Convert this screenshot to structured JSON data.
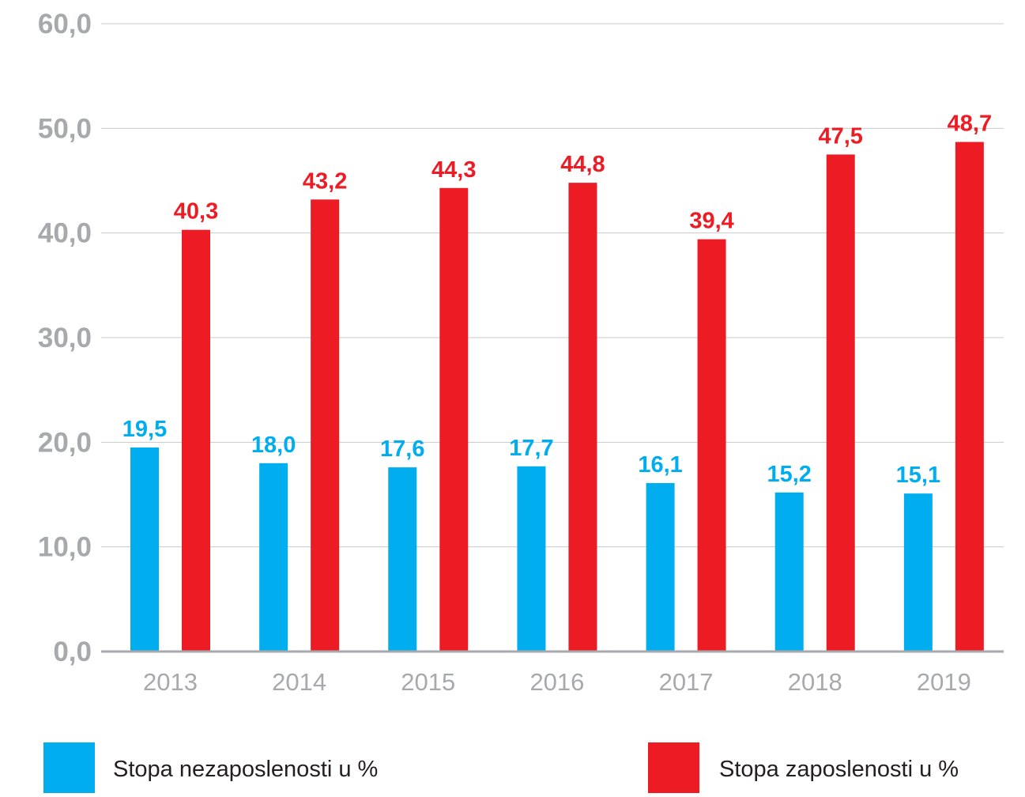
{
  "chart_data": {
    "type": "bar",
    "categories": [
      "2013",
      "2014",
      "2015",
      "2016",
      "2017",
      "2018",
      "2019"
    ],
    "series": [
      {
        "name": "Stopa nezaposlenosti u %",
        "color": "#00adef",
        "values": [
          19.5,
          18.0,
          17.6,
          17.7,
          16.1,
          15.2,
          15.1
        ],
        "labels": [
          "19,5",
          "18,0",
          "17,6",
          "17,7",
          "16,1",
          "15,2",
          "15,1"
        ]
      },
      {
        "name": "Stopa zaposlenosti u %",
        "color": "#ed1c24",
        "values": [
          40.3,
          43.2,
          44.3,
          44.8,
          39.4,
          47.5,
          48.7
        ],
        "labels": [
          "40,3",
          "43,2",
          "44,3",
          "44,8",
          "39,4",
          "47,5",
          "48,7"
        ]
      }
    ],
    "ylim": [
      0,
      60
    ],
    "yticks": [
      0,
      10,
      20,
      30,
      40,
      50,
      60
    ],
    "ytick_labels": [
      "0,0",
      "10,0",
      "20,0",
      "30,0",
      "40,0",
      "50,0",
      "60,0"
    ],
    "grid": true,
    "legend_position": "bottom",
    "title": "",
    "xlabel": "",
    "ylabel": ""
  }
}
